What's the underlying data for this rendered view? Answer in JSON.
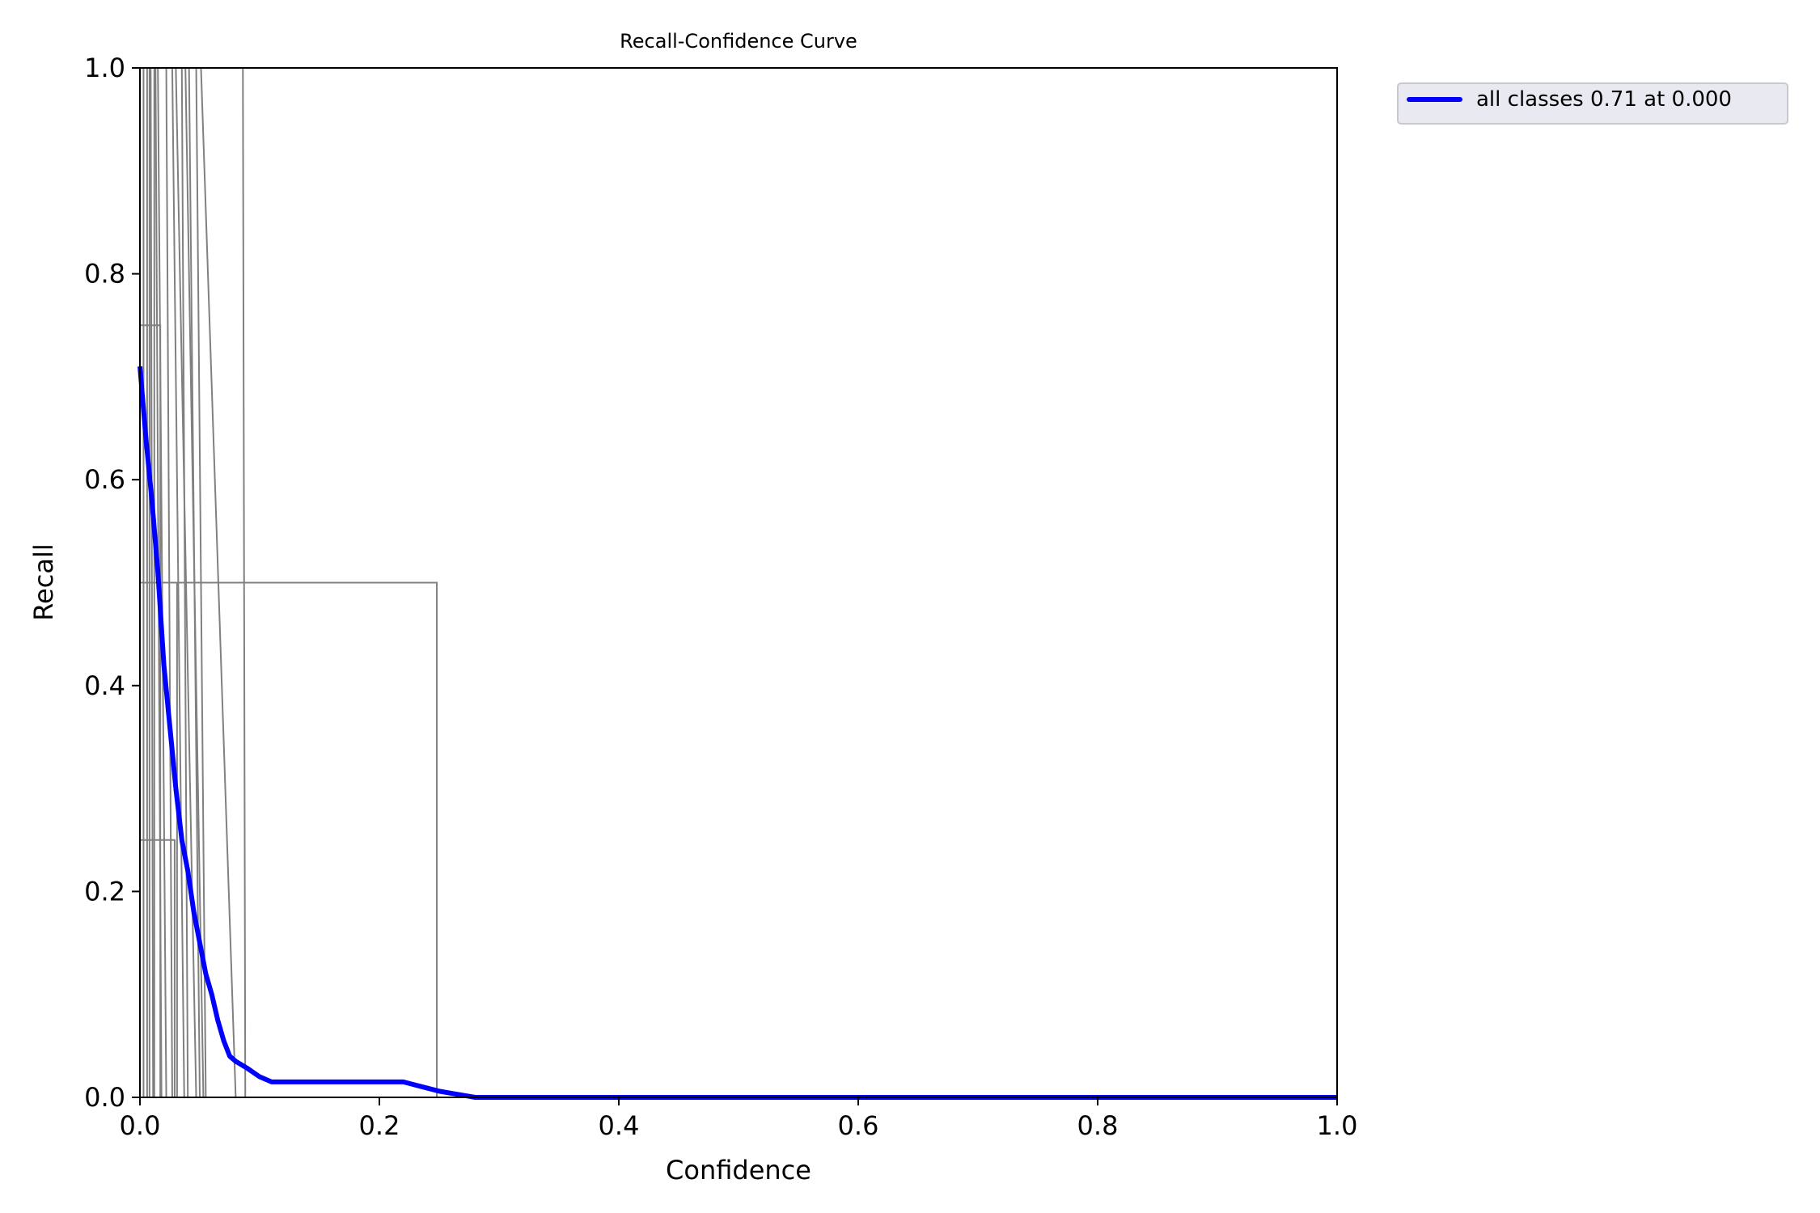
{
  "chart_data": {
    "type": "line",
    "title": "Recall-Confidence Curve",
    "xlabel": "Confidence",
    "ylabel": "Recall",
    "xlim": [
      0.0,
      1.0
    ],
    "ylim": [
      0.0,
      1.0
    ],
    "xticks": [
      "0.0",
      "0.2",
      "0.4",
      "0.6",
      "0.8",
      "1.0"
    ],
    "yticks": [
      "0.0",
      "0.2",
      "0.4",
      "0.6",
      "0.8",
      "1.0"
    ],
    "grid": false,
    "legend_position": "outside-upper-right",
    "series": [
      {
        "name": "all classes 0.71 at 0.000",
        "color": "#0000ff",
        "x": [
          0.0,
          0.005,
          0.01,
          0.015,
          0.02,
          0.025,
          0.03,
          0.035,
          0.04,
          0.045,
          0.05,
          0.055,
          0.06,
          0.065,
          0.07,
          0.075,
          0.08,
          0.09,
          0.1,
          0.11,
          0.12,
          0.14,
          0.16,
          0.18,
          0.2,
          0.22,
          0.23,
          0.24,
          0.25,
          0.26,
          0.27,
          0.28,
          0.4,
          0.6,
          0.8,
          1.0
        ],
        "y": [
          0.71,
          0.64,
          0.58,
          0.51,
          0.42,
          0.36,
          0.3,
          0.25,
          0.22,
          0.18,
          0.15,
          0.12,
          0.1,
          0.075,
          0.055,
          0.04,
          0.035,
          0.028,
          0.02,
          0.015,
          0.015,
          0.015,
          0.015,
          0.015,
          0.015,
          0.015,
          0.012,
          0.009,
          0.006,
          0.004,
          0.002,
          0.0,
          0.0,
          0.0,
          0.0,
          0.0
        ]
      }
    ],
    "class_series": [
      {
        "color": "#808080",
        "x": [
          0.0,
          0.003,
          0.003,
          1.0
        ],
        "y": [
          1.0,
          1.0,
          0.0,
          0.0
        ]
      },
      {
        "color": "#808080",
        "x": [
          0.0,
          0.006,
          0.006,
          1.0
        ],
        "y": [
          1.0,
          1.0,
          0.0,
          0.0
        ]
      },
      {
        "color": "#808080",
        "x": [
          0.0,
          0.008,
          0.008,
          1.0
        ],
        "y": [
          1.0,
          1.0,
          0.0,
          0.0
        ]
      },
      {
        "color": "#808080",
        "x": [
          0.0,
          0.009,
          0.011,
          1.0
        ],
        "y": [
          1.0,
          1.0,
          0.0,
          0.0
        ]
      },
      {
        "color": "#808080",
        "x": [
          0.0,
          0.012,
          0.012,
          1.0
        ],
        "y": [
          1.0,
          1.0,
          0.0,
          0.0
        ]
      },
      {
        "color": "#808080",
        "x": [
          0.0,
          0.004,
          0.013,
          0.017,
          0.017,
          1.0
        ],
        "y": [
          0.75,
          0.75,
          0.75,
          0.75,
          0.0,
          0.0
        ]
      },
      {
        "color": "#808080",
        "x": [
          0.0,
          0.015,
          0.022,
          1.0
        ],
        "y": [
          1.0,
          1.0,
          0.0,
          0.0
        ]
      },
      {
        "color": "#808080",
        "x": [
          0.0,
          0.013,
          0.018,
          1.0
        ],
        "y": [
          1.0,
          1.0,
          0.0,
          0.0
        ]
      },
      {
        "color": "#808080",
        "x": [
          0.0,
          0.022,
          0.027,
          1.0
        ],
        "y": [
          1.0,
          1.0,
          0.0,
          0.0
        ]
      },
      {
        "color": "#808080",
        "x": [
          0.0,
          0.027,
          0.037,
          1.0
        ],
        "y": [
          1.0,
          1.0,
          0.0,
          0.0
        ]
      },
      {
        "color": "#808080",
        "x": [
          0.0,
          0.03,
          0.047,
          1.0
        ],
        "y": [
          1.0,
          1.0,
          0.0,
          0.0
        ]
      },
      {
        "color": "#808080",
        "x": [
          0.0,
          0.035,
          0.04,
          1.0
        ],
        "y": [
          1.0,
          1.0,
          0.0,
          0.0
        ]
      },
      {
        "color": "#808080",
        "x": [
          0.0,
          0.038,
          0.053,
          1.0
        ],
        "y": [
          1.0,
          1.0,
          0.0,
          0.0
        ]
      },
      {
        "color": "#808080",
        "x": [
          0.0,
          0.041,
          0.05,
          1.0
        ],
        "y": [
          1.0,
          1.0,
          0.0,
          0.0
        ]
      },
      {
        "color": "#808080",
        "x": [
          0.0,
          0.047,
          0.055,
          1.0
        ],
        "y": [
          1.0,
          1.0,
          0.0,
          0.0
        ]
      },
      {
        "color": "#808080",
        "x": [
          0.0,
          0.051,
          0.08,
          1.0
        ],
        "y": [
          1.0,
          1.0,
          0.0,
          0.0
        ]
      },
      {
        "color": "#808080",
        "x": [
          0.0,
          0.086,
          0.088,
          1.0
        ],
        "y": [
          1.0,
          1.0,
          0.0,
          0.0
        ]
      },
      {
        "color": "#808080",
        "x": [
          0.0,
          0.024,
          0.024,
          0.029,
          0.029,
          1.0
        ],
        "y": [
          0.25,
          0.25,
          0.25,
          0.25,
          0.0,
          0.0
        ]
      },
      {
        "color": "#808080",
        "x": [
          0.0,
          0.026,
          0.031,
          0.031,
          1.0
        ],
        "y": [
          0.5,
          0.5,
          0.5,
          0.0,
          0.0
        ]
      },
      {
        "color": "#808080",
        "x": [
          0.0,
          0.248,
          0.248,
          1.0
        ],
        "y": [
          0.5,
          0.5,
          0.0,
          0.0
        ]
      }
    ]
  }
}
